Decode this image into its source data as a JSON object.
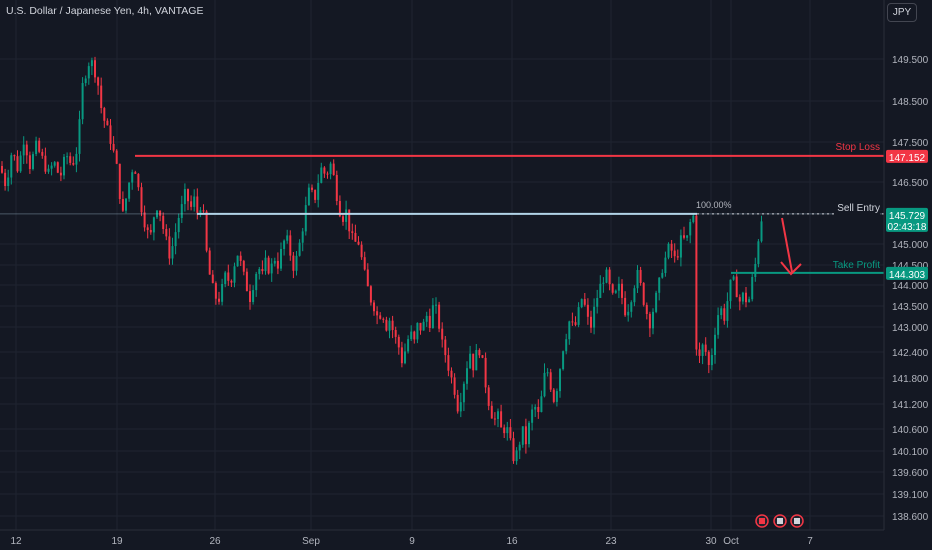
{
  "header": {
    "symbol_title": "U.S. Dollar / Japanese Yen, 4h, VANTAGE",
    "currency_button": "JPY"
  },
  "chart_data": {
    "type": "candlestick",
    "title": "U.S. Dollar / Japanese Yen, 4h, VANTAGE",
    "y_ticks": [
      "149.500",
      "148.500",
      "147.500",
      "146.500",
      "145.000",
      "144.500",
      "144.000",
      "143.500",
      "143.000",
      "142.400",
      "141.800",
      "141.200",
      "140.600",
      "140.100",
      "139.600",
      "139.100",
      "138.600"
    ],
    "y_tick_values": [
      149.5,
      148.5,
      147.5,
      146.5,
      145.0,
      144.5,
      144.0,
      143.5,
      143.0,
      142.4,
      141.8,
      141.2,
      140.6,
      140.1,
      139.6,
      139.1,
      138.6
    ],
    "x_ticks": [
      "12",
      "19",
      "26",
      "Sep",
      "9",
      "16",
      "23",
      "30",
      "Oct",
      "7"
    ],
    "ylim": [
      138.4,
      150.7
    ],
    "grid": true,
    "levels": {
      "stop_loss": {
        "label": "Stop Loss",
        "price": 147.152,
        "price_label": "147.152",
        "color": "#f23645"
      },
      "sell_entry": {
        "label": "Sell Entry",
        "price": 145.729,
        "price_label": "145.729",
        "countdown": "02:43:18",
        "fib_label": "100.00%",
        "color": "#b2d4e8"
      },
      "take_profit": {
        "label": "Take Profit",
        "price": 144.303,
        "price_label": "144.303",
        "color": "#089981"
      }
    },
    "colors": {
      "up": "#089981",
      "down": "#f23645",
      "background": "#141823",
      "grid": "#1f2430"
    },
    "path": [
      [
        0,
        146.9
      ],
      [
        6,
        146.4
      ],
      [
        12,
        147.3
      ],
      [
        18,
        146.8
      ],
      [
        24,
        147.6
      ],
      [
        30,
        146.9
      ],
      [
        36,
        147.4
      ],
      [
        42,
        147.1
      ],
      [
        48,
        146.7
      ],
      [
        54,
        147.0
      ],
      [
        60,
        146.6
      ],
      [
        66,
        147.2
      ],
      [
        72,
        146.9
      ],
      [
        78,
        147.4
      ],
      [
        82,
        148.8
      ],
      [
        86,
        149.2
      ],
      [
        90,
        149.5
      ],
      [
        94,
        149.3
      ],
      [
        98,
        148.9
      ],
      [
        102,
        148.2
      ],
      [
        106,
        147.9
      ],
      [
        110,
        147.6
      ],
      [
        114,
        147.2
      ],
      [
        118,
        146.7
      ],
      [
        122,
        145.6
      ],
      [
        126,
        146.1
      ],
      [
        130,
        146.6
      ],
      [
        134,
        147.0
      ],
      [
        138,
        146.4
      ],
      [
        142,
        145.8
      ],
      [
        146,
        145.4
      ],
      [
        150,
        145.1
      ],
      [
        154,
        145.7
      ],
      [
        158,
        146.0
      ],
      [
        162,
        145.5
      ],
      [
        166,
        145.1
      ],
      [
        170,
        144.7
      ],
      [
        174,
        145.1
      ],
      [
        178,
        145.6
      ],
      [
        182,
        145.9
      ],
      [
        186,
        146.3
      ],
      [
        190,
        145.8
      ],
      [
        194,
        146.1
      ],
      [
        198,
        145.7
      ],
      [
        202,
        146.1
      ],
      [
        206,
        144.9
      ],
      [
        210,
        144.2
      ],
      [
        214,
        143.8
      ],
      [
        218,
        143.6
      ],
      [
        222,
        143.9
      ],
      [
        226,
        144.3
      ],
      [
        230,
        144.0
      ],
      [
        234,
        144.5
      ],
      [
        238,
        144.8
      ],
      [
        242,
        144.4
      ],
      [
        246,
        144.0
      ],
      [
        250,
        143.7
      ],
      [
        254,
        144.1
      ],
      [
        258,
        144.5
      ],
      [
        262,
        144.2
      ],
      [
        266,
        144.6
      ],
      [
        270,
        144.3
      ],
      [
        274,
        144.7
      ],
      [
        278,
        144.5
      ],
      [
        282,
        144.9
      ],
      [
        286,
        145.2
      ],
      [
        290,
        144.8
      ],
      [
        294,
        144.4
      ],
      [
        298,
        144.8
      ],
      [
        302,
        145.3
      ],
      [
        306,
        145.9
      ],
      [
        310,
        146.4
      ],
      [
        314,
        146.0
      ],
      [
        318,
        146.5
      ],
      [
        322,
        146.9
      ],
      [
        326,
        146.6
      ],
      [
        330,
        147.0
      ],
      [
        334,
        146.6
      ],
      [
        338,
        146.0
      ],
      [
        342,
        145.6
      ],
      [
        346,
        145.8
      ],
      [
        350,
        145.3
      ],
      [
        354,
        145.0
      ],
      [
        358,
        145.1
      ],
      [
        362,
        144.6
      ],
      [
        366,
        144.1
      ],
      [
        370,
        143.7
      ],
      [
        374,
        143.5
      ],
      [
        378,
        143.2
      ],
      [
        382,
        143.4
      ],
      [
        386,
        143.0
      ],
      [
        390,
        143.2
      ],
      [
        394,
        142.8
      ],
      [
        398,
        142.6
      ],
      [
        402,
        142.2
      ],
      [
        406,
        142.5
      ],
      [
        410,
        142.9
      ],
      [
        414,
        142.6
      ],
      [
        418,
        143.1
      ],
      [
        422,
        142.9
      ],
      [
        426,
        143.3
      ],
      [
        430,
        143.1
      ],
      [
        434,
        143.6
      ],
      [
        438,
        143.2
      ],
      [
        442,
        142.6
      ],
      [
        446,
        142.3
      ],
      [
        450,
        141.9
      ],
      [
        454,
        141.6
      ],
      [
        458,
        141.1
      ],
      [
        462,
        141.5
      ],
      [
        466,
        142.0
      ],
      [
        470,
        142.4
      ],
      [
        474,
        142.0
      ],
      [
        478,
        142.6
      ],
      [
        482,
        142.2
      ],
      [
        486,
        141.6
      ],
      [
        490,
        141.1
      ],
      [
        494,
        140.8
      ],
      [
        498,
        140.9
      ],
      [
        502,
        140.5
      ],
      [
        506,
        140.7
      ],
      [
        510,
        140.3
      ],
      [
        514,
        139.9
      ],
      [
        518,
        140.1
      ],
      [
        522,
        140.6
      ],
      [
        526,
        140.3
      ],
      [
        530,
        140.8
      ],
      [
        534,
        141.2
      ],
      [
        538,
        140.9
      ],
      [
        542,
        141.4
      ],
      [
        546,
        142.1
      ],
      [
        550,
        141.7
      ],
      [
        554,
        141.3
      ],
      [
        558,
        141.7
      ],
      [
        562,
        142.4
      ],
      [
        566,
        142.8
      ],
      [
        570,
        143.2
      ],
      [
        574,
        142.9
      ],
      [
        578,
        143.3
      ],
      [
        582,
        143.7
      ],
      [
        586,
        143.4
      ],
      [
        590,
        142.9
      ],
      [
        594,
        143.4
      ],
      [
        598,
        143.8
      ],
      [
        602,
        144.1
      ],
      [
        606,
        144.3
      ],
      [
        610,
        143.9
      ],
      [
        614,
        143.6
      ],
      [
        618,
        144.0
      ],
      [
        622,
        143.7
      ],
      [
        626,
        143.3
      ],
      [
        630,
        143.6
      ],
      [
        634,
        144.0
      ],
      [
        638,
        144.3
      ],
      [
        642,
        143.8
      ],
      [
        646,
        143.4
      ],
      [
        650,
        143.1
      ],
      [
        654,
        143.5
      ],
      [
        658,
        143.9
      ],
      [
        662,
        144.4
      ],
      [
        666,
        144.7
      ],
      [
        670,
        145.0
      ],
      [
        674,
        144.6
      ],
      [
        678,
        144.8
      ],
      [
        682,
        145.2
      ],
      [
        686,
        145.0
      ],
      [
        690,
        145.5
      ],
      [
        694,
        145.7
      ],
      [
        696,
        142.6
      ],
      [
        700,
        142.2
      ],
      [
        704,
        142.7
      ],
      [
        708,
        142.0
      ],
      [
        712,
        142.4
      ],
      [
        716,
        143.1
      ],
      [
        720,
        143.5
      ],
      [
        724,
        143.2
      ],
      [
        728,
        143.7
      ],
      [
        732,
        144.2
      ],
      [
        736,
        143.9
      ],
      [
        740,
        143.6
      ],
      [
        744,
        143.8
      ],
      [
        748,
        143.5
      ],
      [
        752,
        144.1
      ],
      [
        756,
        144.6
      ],
      [
        760,
        145.5
      ],
      [
        763,
        145.729
      ]
    ]
  }
}
